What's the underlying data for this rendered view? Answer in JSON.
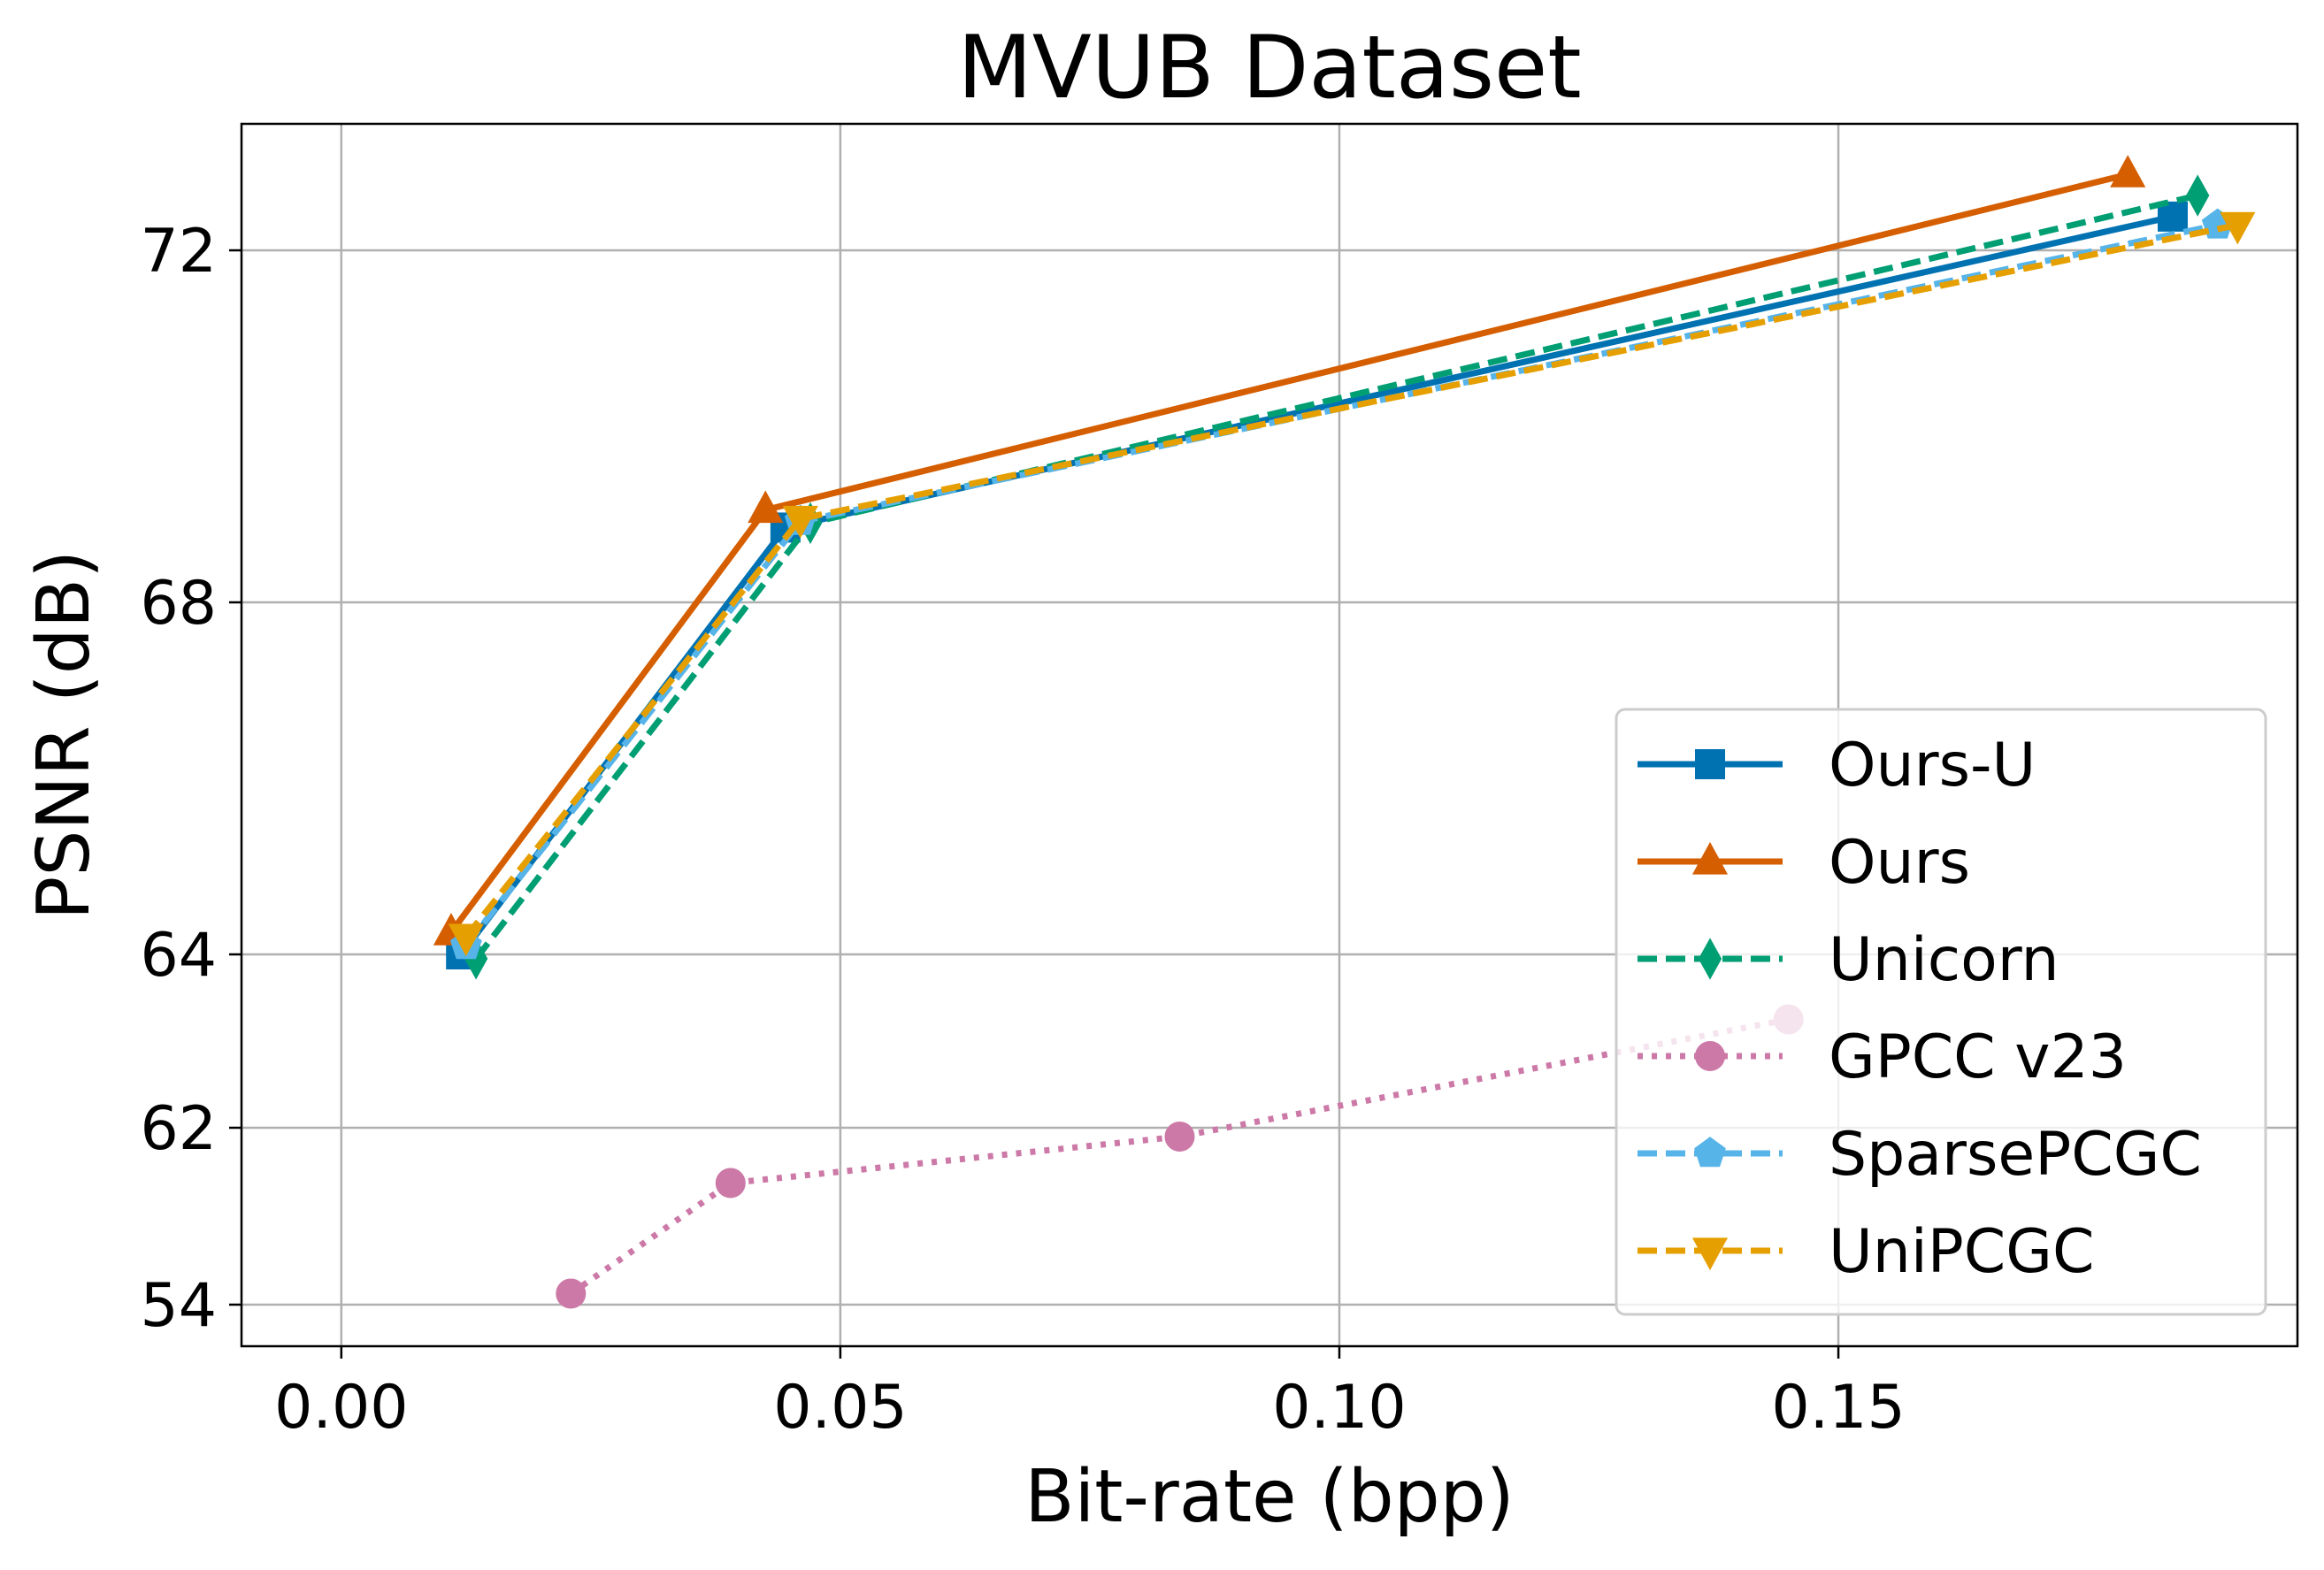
{
  "chart_data": {
    "type": "line",
    "title": "MVUB Dataset",
    "xlabel": "Bit-rate (bpp)",
    "ylabel": "PSNR (dB)",
    "xlim": [
      -0.01,
      0.196
    ],
    "x_ticks": [
      "0.00",
      "0.05",
      "0.10",
      "0.15"
    ],
    "x_tick_values": [
      0.0,
      0.05,
      0.1,
      0.15
    ],
    "y_ticks": [
      "54",
      "62",
      "64",
      "68",
      "72"
    ],
    "y_tick_values": [
      54,
      62,
      64,
      68,
      72
    ],
    "y_scale_note": "non-linear axis: 54→62 segment compressed; tick values as printed",
    "grid": true,
    "legend_position": "lower right",
    "series": [
      {
        "name": "Ours-U",
        "color": "#0072B2",
        "line_style": "solid",
        "marker": "square",
        "x": [
          0.012,
          0.0445,
          0.1835
        ],
        "y": [
          64.0,
          68.85,
          72.4
        ]
      },
      {
        "name": "Ours",
        "color": "#D55E00",
        "line_style": "solid",
        "marker": "triangle-up",
        "x": [
          0.011,
          0.0425,
          0.179
        ],
        "y": [
          64.25,
          69.05,
          72.9
        ]
      },
      {
        "name": "Unicorn",
        "color": "#009E73",
        "line_style": "dashed",
        "marker": "thin-diamond",
        "x": [
          0.0135,
          0.047,
          0.186
        ],
        "y": [
          63.95,
          68.9,
          72.65
        ]
      },
      {
        "name": "GPCC v23",
        "color": "#CC79A7",
        "line_style": "dotted",
        "marker": "circle",
        "x": [
          0.023,
          0.039,
          0.084,
          0.145
        ],
        "y": [
          54.5,
          59.5,
          61.6,
          63.25
        ]
      },
      {
        "name": "SparsePCGC",
        "color": "#56B4E9",
        "line_style": "dashed",
        "marker": "pentagon",
        "x": [
          0.0125,
          0.046,
          0.188
        ],
        "y": [
          64.1,
          68.92,
          72.3
        ]
      },
      {
        "name": "UniPCGC",
        "color": "#E69F00",
        "line_style": "dashed",
        "marker": "triangle-down",
        "x": [
          0.0125,
          0.046,
          0.19
        ],
        "y": [
          64.2,
          68.95,
          72.3
        ]
      }
    ]
  }
}
